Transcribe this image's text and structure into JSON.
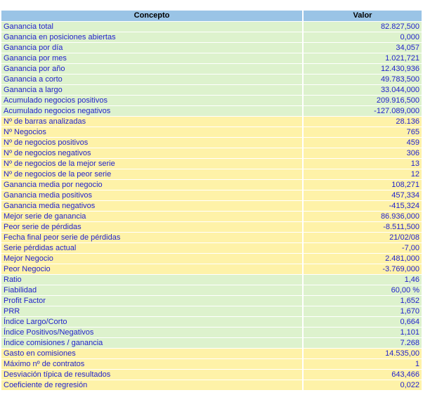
{
  "colors": {
    "header_bg": "#9AC4E6",
    "row_green": "#DDF2CD",
    "row_yellow": "#FEF2A8",
    "text_blue": "#2222CC",
    "header_text": "#000000",
    "gap_white": "#FFFFFF"
  },
  "table": {
    "columns": [
      {
        "label": "Concepto"
      },
      {
        "label": "Valor"
      }
    ],
    "rows": [
      {
        "concept": "Ganancia total",
        "value": "82.827,500",
        "tone": "green"
      },
      {
        "concept": "Ganancia en posiciones abiertas",
        "value": "0,000",
        "tone": "green"
      },
      {
        "concept": "Ganancia por día",
        "value": "34,057",
        "tone": "green"
      },
      {
        "concept": "Ganancia por mes",
        "value": "1.021,721",
        "tone": "green"
      },
      {
        "concept": "Ganancia por año",
        "value": "12.430,936",
        "tone": "green"
      },
      {
        "concept": "Ganancia a corto",
        "value": "49.783,500",
        "tone": "green"
      },
      {
        "concept": "Ganancia a largo",
        "value": "33.044,000",
        "tone": "green"
      },
      {
        "concept": "Acumulado negocios positivos",
        "value": "209.916,500",
        "tone": "green"
      },
      {
        "concept": "Acumulado negocios negativos",
        "value": "-127.089,000",
        "tone": "green"
      },
      {
        "concept": "Nº de barras analizadas",
        "value": "28.136",
        "tone": "yellow"
      },
      {
        "concept": "Nº Negocios",
        "value": "765",
        "tone": "yellow"
      },
      {
        "concept": "Nº de negocios positivos",
        "value": "459",
        "tone": "yellow"
      },
      {
        "concept": "Nº de negocios negativos",
        "value": "306",
        "tone": "yellow"
      },
      {
        "concept": "Nº de negocios de la mejor serie",
        "value": "13",
        "tone": "yellow"
      },
      {
        "concept": "Nº de negocios de la peor serie",
        "value": "12",
        "tone": "yellow"
      },
      {
        "concept": "Ganancia media por negocio",
        "value": "108,271",
        "tone": "yellow"
      },
      {
        "concept": "Ganancia media positivos",
        "value": "457,334",
        "tone": "yellow"
      },
      {
        "concept": "Ganancia media negativos",
        "value": "-415,324",
        "tone": "yellow"
      },
      {
        "concept": "Mejor serie de ganancia",
        "value": "86.936,000",
        "tone": "yellow"
      },
      {
        "concept": "Peor serie de pérdidas",
        "value": "-8.511,500",
        "tone": "yellow"
      },
      {
        "concept": "Fecha final peor serie de pérdidas",
        "value": "21/02/08",
        "tone": "yellow"
      },
      {
        "concept": "Serie pérdidas actual",
        "value": "-7,00",
        "tone": "yellow"
      },
      {
        "concept": "Mejor Negocio",
        "value": "2.481,000",
        "tone": "yellow"
      },
      {
        "concept": "Peor Negocio",
        "value": "-3.769,000",
        "tone": "yellow"
      },
      {
        "concept": "Ratio",
        "value": "1,46",
        "tone": "green"
      },
      {
        "concept": "Fiabilidad",
        "value": "60,00 %",
        "tone": "green"
      },
      {
        "concept": "Profit Factor",
        "value": "1,652",
        "tone": "green"
      },
      {
        "concept": "PRR",
        "value": "1,670",
        "tone": "green"
      },
      {
        "concept": "Índice Largo/Corto",
        "value": "0,664",
        "tone": "green"
      },
      {
        "concept": "Índice Positivos/Negativos",
        "value": "1,101",
        "tone": "green"
      },
      {
        "concept": "Índice comisiones / ganancia",
        "value": "7.268",
        "tone": "green"
      },
      {
        "concept": "Gasto en comisiones",
        "value": "14.535,00",
        "tone": "yellow"
      },
      {
        "concept": "Máximo nº de contratos",
        "value": "1",
        "tone": "yellow"
      },
      {
        "concept": "Desviación típica de resultados",
        "value": "643,466",
        "tone": "yellow"
      },
      {
        "concept": "Coeficiente de regresión",
        "value": "0,022",
        "tone": "yellow"
      }
    ]
  }
}
